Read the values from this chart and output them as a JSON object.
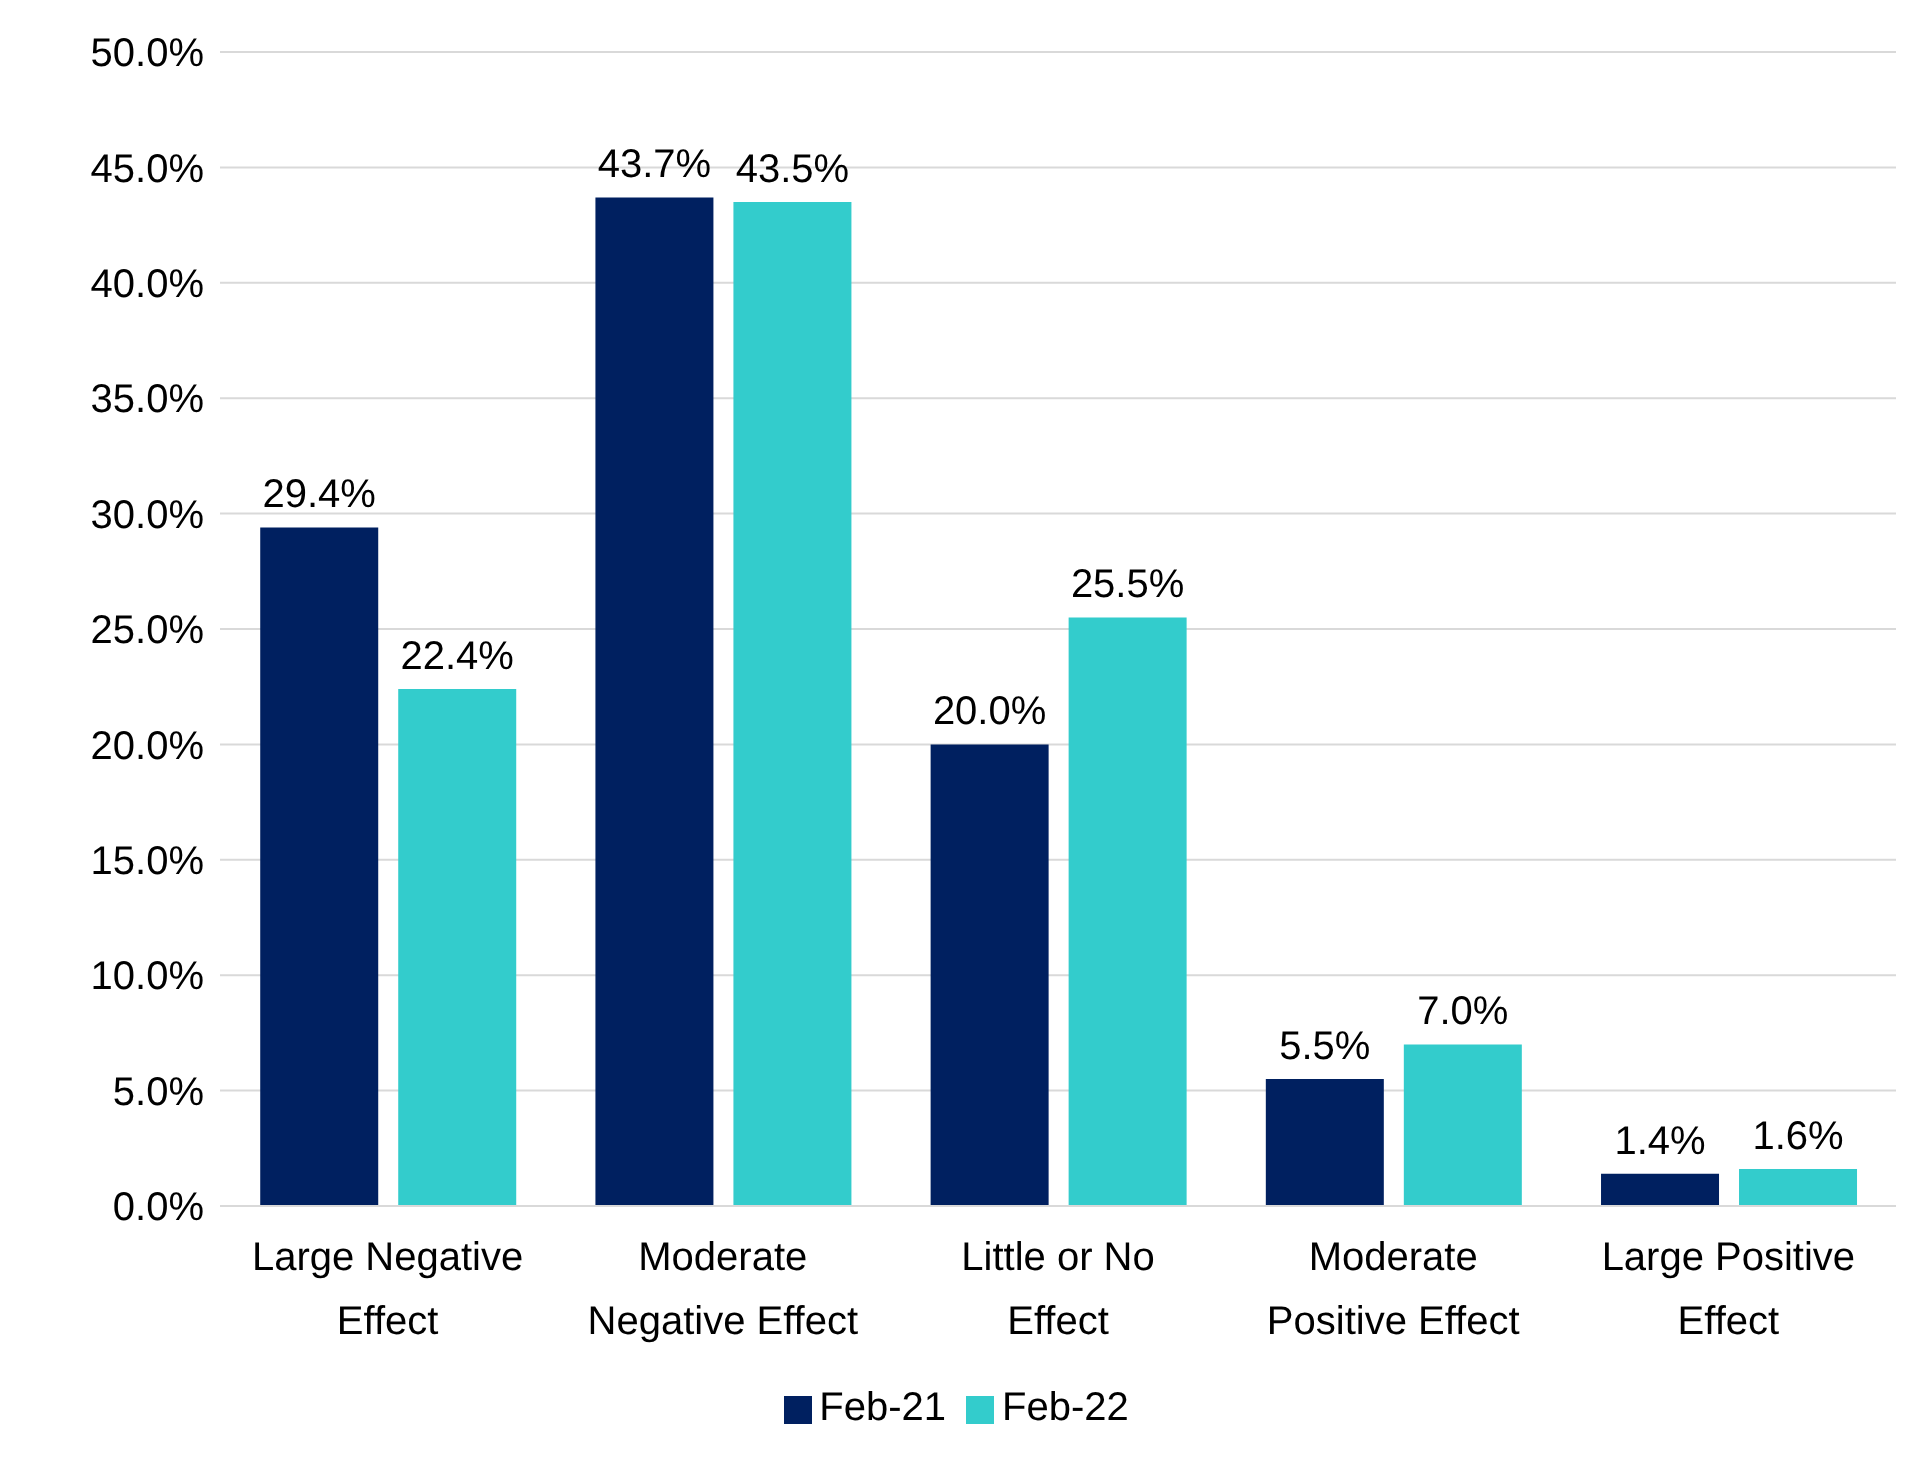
{
  "chart_data": {
    "type": "bar",
    "categories": [
      "Large Negative Effect",
      "Moderate Negative Effect",
      "Little or No Effect",
      "Moderate Positive Effect",
      "Large Positive Effect"
    ],
    "series": [
      {
        "name": "Feb-21",
        "color": "#002060",
        "values": [
          29.4,
          43.7,
          20.0,
          5.5,
          1.4
        ],
        "value_labels": [
          "29.4%",
          "43.7%",
          "20.0%",
          "5.5%",
          "1.4%"
        ]
      },
      {
        "name": "Feb-22",
        "color": "#33cccc",
        "values": [
          22.4,
          43.5,
          25.5,
          7.0,
          1.6
        ],
        "value_labels": [
          "22.4%",
          "43.5%",
          "25.5%",
          "7.0%",
          "1.6%"
        ]
      }
    ],
    "ylim": [
      0,
      50
    ],
    "yticks": [
      {
        "value": 0,
        "label": "0.0%"
      },
      {
        "value": 5,
        "label": "5.0%"
      },
      {
        "value": 10,
        "label": "10.0%"
      },
      {
        "value": 15,
        "label": "15.0%"
      },
      {
        "value": 20,
        "label": "20.0%"
      },
      {
        "value": 25,
        "label": "25.0%"
      },
      {
        "value": 30,
        "label": "30.0%"
      },
      {
        "value": 35,
        "label": "35.0%"
      },
      {
        "value": 40,
        "label": "40.0%"
      },
      {
        "value": 45,
        "label": "45.0%"
      },
      {
        "value": 50,
        "label": "50.0%"
      }
    ],
    "grid": "y",
    "legend": "bottom"
  }
}
